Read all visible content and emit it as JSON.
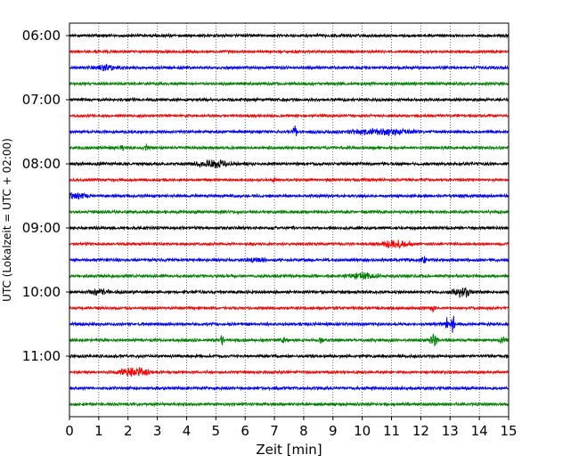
{
  "chart_data": {
    "type": "line",
    "title": "",
    "xlabel": "Zeit  [min]",
    "ylabel": "UTC (Lokalzeit = UTC + 02:00)",
    "xlim": [
      0,
      15
    ],
    "x_ticks": [
      0,
      1,
      2,
      3,
      4,
      5,
      6,
      7,
      8,
      9,
      10,
      11,
      12,
      13,
      14,
      15
    ],
    "x_tick_labels": [
      "0",
      "1",
      "2",
      "3",
      "4",
      "5",
      "6",
      "7",
      "8",
      "9",
      "10",
      "11",
      "12",
      "13",
      "14",
      "15"
    ],
    "y_ticks": [
      "06:00",
      "07:00",
      "08:00",
      "09:00",
      "10:00",
      "11:00"
    ],
    "row_interval_min": 15,
    "rows_per_hour": 4,
    "grid": "vertical dotted",
    "colors": [
      "#000000",
      "#ff0000",
      "#0000ff",
      "#008000"
    ],
    "series": [
      {
        "start": "06:00",
        "color": "#000000",
        "amp": 0.25,
        "events": []
      },
      {
        "start": "06:15",
        "color": "#ff0000",
        "amp": 0.22,
        "events": []
      },
      {
        "start": "06:30",
        "color": "#0000ff",
        "amp": 0.25,
        "events": [
          {
            "t": 1.2,
            "a": 0.35,
            "w": 0.4
          }
        ]
      },
      {
        "start": "06:45",
        "color": "#008000",
        "amp": 0.25,
        "events": []
      },
      {
        "start": "07:00",
        "color": "#000000",
        "amp": 0.25,
        "events": []
      },
      {
        "start": "07:15",
        "color": "#ff0000",
        "amp": 0.22,
        "events": []
      },
      {
        "start": "07:30",
        "color": "#0000ff",
        "amp": 0.25,
        "events": [
          {
            "t": 7.7,
            "a": 1.5,
            "w": 0.06
          },
          {
            "t": 10.6,
            "a": 0.45,
            "w": 0.9
          }
        ]
      },
      {
        "start": "07:45",
        "color": "#008000",
        "amp": 0.25,
        "events": [
          {
            "t": 1.8,
            "a": 0.45,
            "w": 0.05
          },
          {
            "t": 2.6,
            "a": 0.45,
            "w": 0.05
          }
        ]
      },
      {
        "start": "08:00",
        "color": "#000000",
        "amp": 0.25,
        "events": [
          {
            "t": 4.9,
            "a": 0.55,
            "w": 0.5
          }
        ]
      },
      {
        "start": "08:15",
        "color": "#ff0000",
        "amp": 0.22,
        "events": [
          {
            "t": 7.0,
            "a": 0.5,
            "w": 0.06
          }
        ]
      },
      {
        "start": "08:30",
        "color": "#0000ff",
        "amp": 0.25,
        "events": [
          {
            "t": 0.2,
            "a": 0.45,
            "w": 0.4
          }
        ]
      },
      {
        "start": "08:45",
        "color": "#008000",
        "amp": 0.25,
        "events": []
      },
      {
        "start": "09:00",
        "color": "#000000",
        "amp": 0.25,
        "events": []
      },
      {
        "start": "09:15",
        "color": "#ff0000",
        "amp": 0.22,
        "events": [
          {
            "t": 11.1,
            "a": 0.6,
            "w": 0.5
          }
        ]
      },
      {
        "start": "09:30",
        "color": "#0000ff",
        "amp": 0.25,
        "events": [
          {
            "t": 12.1,
            "a": 0.7,
            "w": 0.06
          },
          {
            "t": 6.4,
            "a": 0.35,
            "w": 0.3
          }
        ]
      },
      {
        "start": "09:45",
        "color": "#008000",
        "amp": 0.25,
        "events": [
          {
            "t": 10.0,
            "a": 0.6,
            "w": 0.4
          }
        ]
      },
      {
        "start": "10:00",
        "color": "#000000",
        "amp": 0.25,
        "events": [
          {
            "t": 13.4,
            "a": 0.7,
            "w": 0.3
          },
          {
            "t": 1.0,
            "a": 0.35,
            "w": 0.4
          }
        ]
      },
      {
        "start": "10:15",
        "color": "#ff0000",
        "amp": 0.22,
        "events": [
          {
            "t": 12.4,
            "a": 0.45,
            "w": 0.08
          }
        ]
      },
      {
        "start": "10:30",
        "color": "#0000ff",
        "amp": 0.25,
        "events": [
          {
            "t": 13.1,
            "a": 1.7,
            "w": 0.05
          },
          {
            "t": 12.9,
            "a": 1.0,
            "w": 0.05
          }
        ]
      },
      {
        "start": "10:45",
        "color": "#008000",
        "amp": 0.25,
        "events": [
          {
            "t": 5.2,
            "a": 0.7,
            "w": 0.06
          },
          {
            "t": 7.3,
            "a": 0.5,
            "w": 0.05
          },
          {
            "t": 8.6,
            "a": 0.5,
            "w": 0.05
          },
          {
            "t": 12.45,
            "a": 1.0,
            "w": 0.12
          },
          {
            "t": 14.9,
            "a": 0.5,
            "w": 0.2
          }
        ]
      },
      {
        "start": "11:00",
        "color": "#000000",
        "amp": 0.25,
        "events": []
      },
      {
        "start": "11:15",
        "color": "#ff0000",
        "amp": 0.22,
        "events": [
          {
            "t": 2.2,
            "a": 0.7,
            "w": 0.5
          }
        ]
      },
      {
        "start": "11:30",
        "color": "#0000ff",
        "amp": 0.25,
        "events": []
      },
      {
        "start": "11:45",
        "color": "#008000",
        "amp": 0.25,
        "events": []
      }
    ]
  }
}
